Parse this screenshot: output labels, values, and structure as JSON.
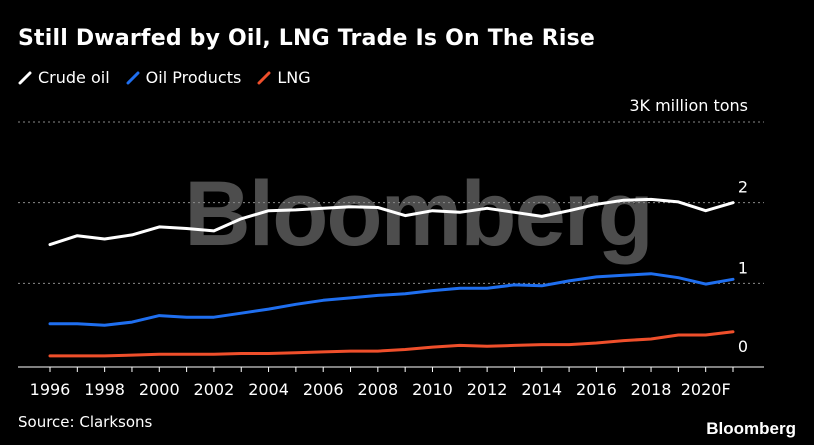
{
  "chart_data": {
    "type": "line",
    "title": "Still Dwarfed by Oil, LNG Trade Is On The Rise",
    "unit_label": "3K million tons",
    "x": [
      1996,
      1997,
      1998,
      1999,
      2000,
      2001,
      2002,
      2003,
      2004,
      2005,
      2006,
      2007,
      2008,
      2009,
      2010,
      2011,
      2012,
      2013,
      2014,
      2015,
      2016,
      2017,
      2018,
      2019,
      2020,
      2021
    ],
    "x_tick_values": [
      1996,
      1998,
      2000,
      2002,
      2004,
      2006,
      2008,
      2010,
      2012,
      2014,
      2016,
      2018,
      2020
    ],
    "x_tick_labels": [
      "1996",
      "1998",
      "2000",
      "2002",
      "2004",
      "2006",
      "2008",
      "2010",
      "2012",
      "2014",
      "2016",
      "2018",
      "2020F"
    ],
    "y_ticks": [
      0,
      1,
      2,
      3
    ],
    "y_tick_labels": [
      "0",
      "1",
      "2",
      ""
    ],
    "ylim": [
      0,
      3
    ],
    "grid": "horizontal dotted",
    "legend_position": "top-left",
    "series": [
      {
        "name": "Crude oil",
        "color": "#ffffff",
        "values": [
          1.48,
          1.59,
          1.55,
          1.6,
          1.7,
          1.68,
          1.65,
          1.8,
          1.9,
          1.91,
          1.93,
          1.95,
          1.94,
          1.84,
          1.9,
          1.88,
          1.93,
          1.88,
          1.83,
          1.9,
          1.98,
          2.03,
          2.04,
          2.01,
          1.9,
          2.0
        ]
      },
      {
        "name": "Oil Products",
        "color": "#1f6ff0",
        "values": [
          0.5,
          0.5,
          0.48,
          0.52,
          0.6,
          0.58,
          0.58,
          0.63,
          0.68,
          0.74,
          0.79,
          0.82,
          0.85,
          0.87,
          0.91,
          0.94,
          0.94,
          0.98,
          0.97,
          1.03,
          1.08,
          1.1,
          1.12,
          1.07,
          0.99,
          1.05
        ]
      },
      {
        "name": "LNG",
        "color": "#ef4f2b",
        "values": [
          0.1,
          0.1,
          0.1,
          0.11,
          0.12,
          0.12,
          0.12,
          0.13,
          0.13,
          0.14,
          0.15,
          0.16,
          0.16,
          0.18,
          0.21,
          0.23,
          0.22,
          0.23,
          0.24,
          0.24,
          0.26,
          0.29,
          0.31,
          0.36,
          0.36,
          0.4
        ]
      }
    ]
  },
  "watermark": "Bloomberg",
  "source": "Source: Clarksons",
  "brand": "Bloomberg"
}
